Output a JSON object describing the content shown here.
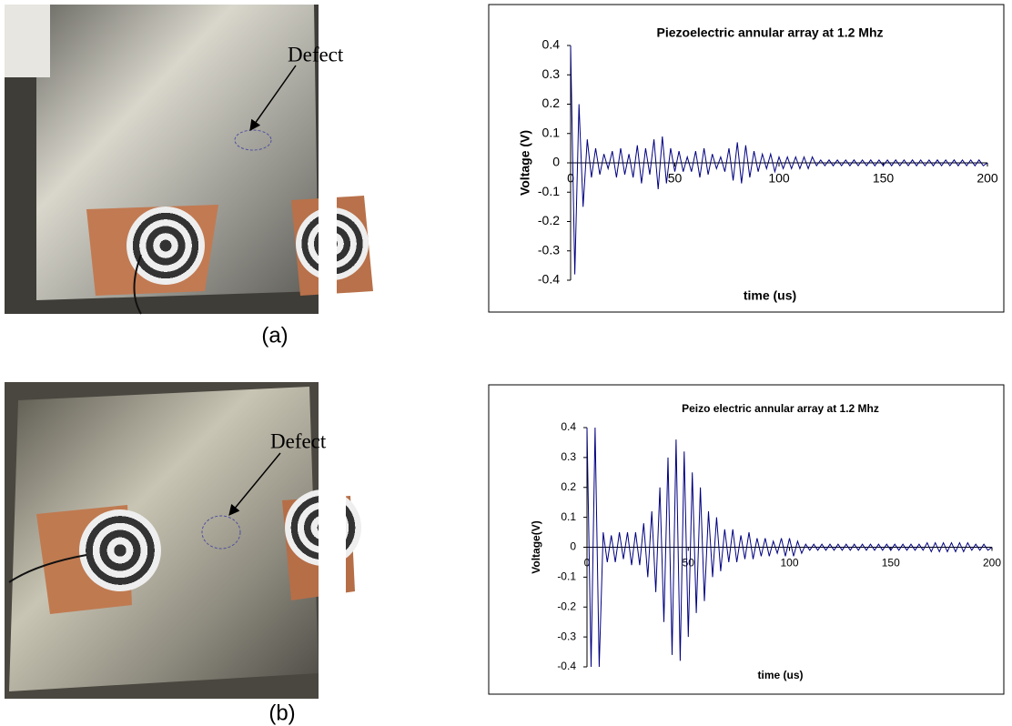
{
  "chart_data": [
    {
      "type": "line",
      "title": "Piezoelectric annular array at 1.2 Mhz",
      "x_label": "time  (us)",
      "y_label": "Voltage (V)",
      "color": "#000080",
      "x": [
        0,
        2,
        4,
        6,
        8,
        10,
        12,
        14,
        16,
        18,
        20,
        22,
        24,
        26,
        28,
        30,
        32,
        34,
        36,
        38,
        40,
        42,
        44,
        46,
        48,
        50,
        52,
        54,
        56,
        58,
        60,
        62,
        64,
        66,
        68,
        70,
        72,
        74,
        76,
        78,
        80,
        82,
        84,
        86,
        88,
        90,
        92,
        94,
        96,
        98,
        100,
        102,
        104,
        106,
        108,
        110,
        112,
        114,
        116,
        118,
        120,
        122,
        124,
        126,
        128,
        130,
        132,
        134,
        136,
        138,
        140,
        142,
        144,
        146,
        148,
        150,
        152,
        154,
        156,
        158,
        160,
        162,
        164,
        166,
        168,
        170,
        172,
        174,
        176,
        178,
        180,
        182,
        184,
        186,
        188,
        190,
        192,
        194,
        196,
        198,
        200
      ],
      "values": [
        0.4,
        -0.38,
        0.2,
        -0.15,
        0.08,
        -0.05,
        0.05,
        -0.04,
        0.03,
        -0.02,
        0.04,
        -0.05,
        0.05,
        -0.04,
        0.03,
        -0.05,
        0.06,
        -0.07,
        0.05,
        -0.04,
        0.08,
        -0.09,
        0.09,
        -0.07,
        0.05,
        -0.03,
        0.04,
        -0.03,
        0.02,
        -0.03,
        0.04,
        -0.05,
        0.05,
        -0.04,
        0.03,
        -0.02,
        0.02,
        -0.03,
        0.05,
        -0.06,
        0.07,
        -0.07,
        0.06,
        -0.05,
        0.04,
        -0.03,
        0.03,
        -0.02,
        0.03,
        -0.03,
        0.02,
        -0.02,
        0.02,
        -0.02,
        0.02,
        -0.02,
        0.02,
        -0.02,
        0.02,
        -0.01,
        0.01,
        -0.01,
        0.01,
        -0.01,
        0.01,
        -0.01,
        0.01,
        -0.01,
        0.01,
        -0.01,
        0.01,
        -0.01,
        0.01,
        -0.01,
        0.01,
        -0.01,
        0.01,
        -0.01,
        0.01,
        -0.01,
        0.01,
        -0.01,
        0.01,
        -0.01,
        0.01,
        -0.01,
        0.01,
        -0.01,
        0.01,
        -0.01,
        0.01,
        -0.01,
        0.01,
        -0.01,
        0.01,
        -0.01,
        0.01,
        -0.01,
        0.01,
        -0.01,
        0
      ],
      "xlim": [
        0,
        200
      ],
      "xticks": [
        0,
        50,
        100,
        150,
        200
      ],
      "ylim": [
        -0.4,
        0.4
      ],
      "yticks": [
        0.4,
        0.3,
        0.2,
        0.1,
        0,
        -0.1,
        -0.2,
        -0.3,
        -0.4
      ]
    },
    {
      "type": "line",
      "title": "Peizo electric annular array at 1.2 Mhz",
      "x_label": "time (us)",
      "y_label": "Voltage(V)",
      "color": "#000080",
      "x": [
        0,
        2,
        4,
        6,
        8,
        10,
        12,
        14,
        16,
        18,
        20,
        22,
        24,
        26,
        28,
        30,
        32,
        34,
        36,
        38,
        40,
        42,
        44,
        46,
        48,
        50,
        52,
        54,
        56,
        58,
        60,
        62,
        64,
        66,
        68,
        70,
        72,
        74,
        76,
        78,
        80,
        82,
        84,
        86,
        88,
        90,
        92,
        94,
        96,
        98,
        100,
        102,
        104,
        106,
        108,
        110,
        112,
        114,
        116,
        118,
        120,
        122,
        124,
        126,
        128,
        130,
        132,
        134,
        136,
        138,
        140,
        142,
        144,
        146,
        148,
        150,
        152,
        154,
        156,
        158,
        160,
        162,
        164,
        166,
        168,
        170,
        172,
        174,
        176,
        178,
        180,
        182,
        184,
        186,
        188,
        190,
        192,
        194,
        196,
        198,
        200
      ],
      "values": [
        0.4,
        -0.4,
        0.4,
        -0.4,
        0.05,
        -0.05,
        0.04,
        -0.05,
        0.05,
        -0.04,
        0.05,
        -0.06,
        0.05,
        -0.06,
        0.08,
        -0.1,
        0.12,
        -0.15,
        0.2,
        -0.25,
        0.3,
        -0.36,
        0.36,
        -0.38,
        0.32,
        -0.3,
        0.25,
        -0.22,
        0.2,
        -0.18,
        0.12,
        -0.1,
        0.1,
        -0.08,
        0.06,
        -0.05,
        0.06,
        -0.05,
        0.04,
        -0.04,
        0.05,
        -0.04,
        0.03,
        -0.03,
        0.03,
        -0.03,
        0.02,
        -0.02,
        0.03,
        -0.03,
        0.03,
        -0.03,
        0.02,
        -0.02,
        0.01,
        -0.01,
        0.01,
        -0.01,
        0.01,
        -0.01,
        0.01,
        -0.01,
        0.01,
        -0.01,
        0.01,
        -0.01,
        0.01,
        -0.01,
        0.01,
        -0.01,
        0.01,
        -0.01,
        0.01,
        -0.01,
        0.01,
        -0.01,
        0.01,
        -0.01,
        0.01,
        -0.01,
        0.01,
        -0.01,
        0.01,
        -0.01,
        0.015,
        -0.015,
        0.015,
        -0.015,
        0.015,
        -0.015,
        0.015,
        -0.015,
        0.015,
        -0.015,
        0.015,
        -0.01,
        0.01,
        -0.01,
        0.01,
        -0.01,
        0
      ],
      "xlim": [
        0,
        200
      ],
      "xticks": [
        0,
        50,
        100,
        150,
        200
      ],
      "ylim": [
        -0.4,
        0.4
      ],
      "yticks": [
        0.4,
        0.3,
        0.2,
        0.1,
        0,
        -0.1,
        -0.2,
        -0.3,
        -0.4
      ]
    }
  ],
  "panels": [
    {
      "caption": "(a)",
      "annotation": "Defect"
    },
    {
      "caption": "(b)",
      "annotation": "Defect"
    }
  ]
}
